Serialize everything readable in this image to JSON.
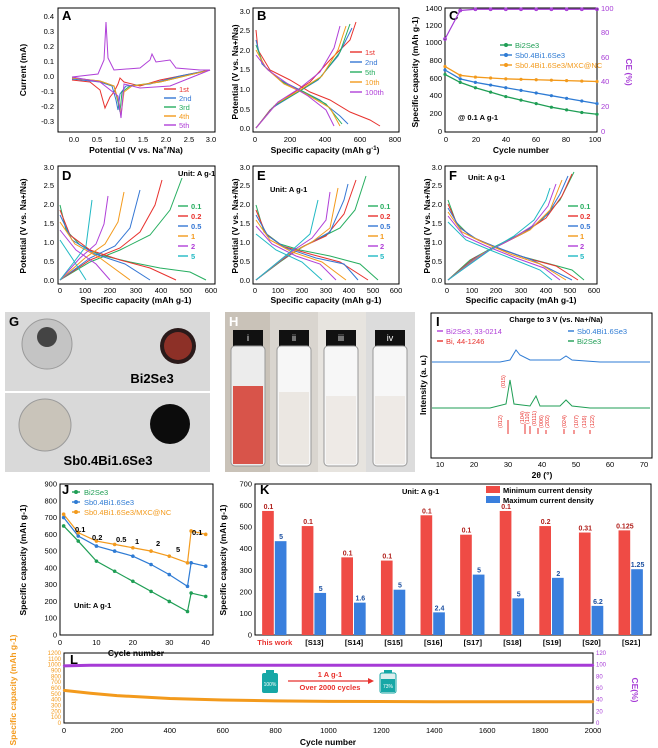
{
  "figure_title": "",
  "panels": {
    "A": {
      "letter": "A",
      "xlabel": "Potential (V vs. Na",
      "xlabel_sup": "+",
      "xlabel_end": "/Na)",
      "ylabel": "Current (mA)",
      "xticks": [
        "0.0",
        "0.5",
        "1.0",
        "1.5",
        "2.0",
        "2.5",
        "3.0"
      ],
      "yticks": [
        "0.4",
        "0.3",
        "0.2",
        "0.1",
        "0.0",
        "-0.1",
        "-0.2",
        "-0.3"
      ],
      "legend": [
        "1st",
        "2nd",
        "3rd",
        "4th",
        "5th"
      ]
    },
    "B": {
      "letter": "B",
      "xlabel": "Specific capacity (mAh g",
      "xlabel_sup": "-1",
      "xlabel_end": ")",
      "ylabel": "Potential (V vs. Na+/Na)",
      "xticks": [
        "0",
        "200",
        "400",
        "600",
        "800"
      ],
      "yticks": [
        "0.0",
        "0.5",
        "1.0",
        "1.5",
        "2.0",
        "2.5",
        "3.0"
      ],
      "legend": [
        "1st",
        "2nd",
        "5th",
        "10th",
        "100th"
      ]
    },
    "C": {
      "letter": "C",
      "xlabel": "Cycle number",
      "ylabel": "Specific capacity (mAh g-1)",
      "y2label": "CE (%)",
      "xticks": [
        "0",
        "20",
        "40",
        "60",
        "80",
        "100"
      ],
      "yticks": [
        "0",
        "200",
        "400",
        "600",
        "800",
        "1000",
        "1200",
        "1400"
      ],
      "y2ticks": [
        "0",
        "20",
        "40",
        "60",
        "80",
        "100"
      ],
      "legend": [
        "Bi2Se3",
        "Sb0.4Bi1.6Se3",
        "Sb0.4Bi1.6Se3/MXC@NC"
      ],
      "annotation": "@ 0.1 A g-1"
    },
    "D": {
      "letter": "D",
      "xlabel": "Specific capacity (mAh g-1)",
      "ylabel": "Potential (V vs. Na+/Na)",
      "xticks": [
        "0",
        "100",
        "200",
        "300",
        "400",
        "500",
        "600"
      ],
      "yticks": [
        "0.0",
        "0.5",
        "1.0",
        "1.5",
        "2.0",
        "2.5",
        "3.0"
      ],
      "unit": "Unit: A g-1",
      "legend": [
        "0.1",
        "0.2",
        "0.5",
        "1",
        "2",
        "5"
      ]
    },
    "E": {
      "letter": "E",
      "xlabel": "Specific capacity (mAh g-1)",
      "ylabel": "Potential (V vs. Na+/Na)",
      "xticks": [
        "0",
        "100",
        "200",
        "300",
        "400",
        "500",
        "600"
      ],
      "yticks": [
        "0.0",
        "0.5",
        "1.0",
        "1.5",
        "2.0",
        "2.5",
        "3.0"
      ],
      "unit": "Unit: A g-1",
      "legend": [
        "0.1",
        "0.2",
        "0.5",
        "1",
        "2",
        "5"
      ]
    },
    "F": {
      "letter": "F",
      "xlabel": "Specific capacity (mAh g-1)",
      "ylabel": "Potential (V vs. Na+/Na)",
      "xticks": [
        "0",
        "100",
        "200",
        "300",
        "400",
        "500",
        "600"
      ],
      "yticks": [
        "0.0",
        "0.5",
        "1.0",
        "1.5",
        "2.0",
        "2.5",
        "3.0"
      ],
      "unit": "Unit: A g-1",
      "legend": [
        "0.1",
        "0.2",
        "0.5",
        "1",
        "2",
        "5"
      ]
    },
    "G": {
      "letter": "G",
      "label1": "Bi2Se3",
      "label2": "Sb0.4Bi1.6Se3"
    },
    "H": {
      "letter": "H",
      "vials": [
        "i",
        "ii",
        "iii",
        "iv"
      ]
    },
    "I": {
      "letter": "I",
      "title": "Charge to 3 V (vs. Na+/Na)",
      "xlabel": "2θ (°)",
      "ylabel": "Intensity (a. u.)",
      "xticks": [
        "10",
        "20",
        "30",
        "40",
        "50",
        "60",
        "70"
      ],
      "legend": [
        "Bi2Se3, 33-0214",
        "Bi, 44-1246",
        "Sb0.4Bi1.6Se3",
        "Bi2Se3"
      ],
      "peaks": [
        "(012)",
        "(015)",
        "(104)",
        "(110)",
        "(0111)",
        "(006)",
        "(202)",
        "(024)",
        "(107)",
        "(116)",
        "(122)"
      ]
    },
    "J": {
      "letter": "J",
      "xlabel": "Cycle number",
      "ylabel": "Specific capacity (mAh g-1)",
      "xticks": [
        "0",
        "10",
        "20",
        "30",
        "40"
      ],
      "yticks": [
        "0",
        "100",
        "200",
        "300",
        "400",
        "500",
        "600",
        "700",
        "800",
        "900"
      ],
      "legend": [
        "Bi2Se3",
        "Sb0.4Bi1.6Se3",
        "Sb0.4Bi1.6Se3/MXC@NC"
      ],
      "rates": [
        "0.1",
        "0.2",
        "0.5",
        "1",
        "2",
        "5",
        "0.1"
      ],
      "unit": "Unit: A g-1"
    },
    "K": {
      "letter": "K",
      "ylabel": "Specific capacity (mAh g-1)",
      "unit": "Unit: A g-1",
      "yticks": [
        "0",
        "100",
        "200",
        "300",
        "400",
        "500",
        "600",
        "700"
      ],
      "legend": [
        "Minimum current density",
        "Maximum current density"
      ]
    },
    "L": {
      "letter": "L",
      "xlabel": "Cycle number",
      "ylabel": "Specific capacity (mAh g-1)",
      "y2label": "CE(%)",
      "xticks": [
        "0",
        "200",
        "400",
        "600",
        "800",
        "1000",
        "1200",
        "1400",
        "1600",
        "1800",
        "2000"
      ],
      "yticks": [
        "0",
        "100",
        "200",
        "300",
        "400",
        "500",
        "600",
        "700",
        "800",
        "900",
        "1000",
        "1100",
        "1200"
      ],
      "y2ticks": [
        "0",
        "20",
        "40",
        "60",
        "80",
        "100",
        "120"
      ],
      "rate": "1 A g-1",
      "cycles_text": "Over 2000 cycles",
      "batt_left": "100%",
      "batt_right": "73%"
    }
  },
  "colors": {
    "c1": "#e8322e",
    "c2": "#3577d4",
    "c3": "#27ae60",
    "c4": "#f39a1c",
    "c5": "#b040d8",
    "bi2se3": "#1f9e55",
    "sbbise": "#2e7bd4",
    "mxc": "#f39a1c",
    "ce": "#a63bd6"
  },
  "chart_data": [
    {
      "panel": "C",
      "type": "line",
      "x": [
        0,
        10,
        20,
        30,
        40,
        50,
        60,
        70,
        80,
        90,
        100
      ],
      "series": [
        {
          "name": "Bi2Se3",
          "values": [
            650,
            560,
            500,
            450,
            400,
            360,
            320,
            280,
            250,
            220,
            200
          ]
        },
        {
          "name": "Sb0.4Bi1.6Se3",
          "values": [
            700,
            600,
            560,
            530,
            500,
            470,
            440,
            410,
            380,
            350,
            320
          ]
        },
        {
          "name": "Sb0.4Bi1.6Se3/MXC@NC",
          "values": [
            740,
            640,
            620,
            610,
            600,
            595,
            590,
            585,
            580,
            575,
            570
          ]
        }
      ],
      "ce": [
        75,
        98,
        99,
        99,
        99,
        99,
        99,
        99,
        99,
        99,
        99
      ],
      "xlim": [
        0,
        100
      ],
      "ylim": [
        0,
        1400
      ],
      "y2lim": [
        0,
        100
      ]
    },
    {
      "panel": "J",
      "type": "line",
      "x": [
        1,
        5,
        10,
        15,
        20,
        25,
        30,
        35,
        36,
        40
      ],
      "series": [
        {
          "name": "Bi2Se3",
          "values": [
            650,
            560,
            440,
            380,
            320,
            260,
            200,
            140,
            250,
            230
          ]
        },
        {
          "name": "Sb0.4Bi1.6Se3",
          "values": [
            700,
            590,
            530,
            500,
            470,
            420,
            360,
            290,
            430,
            410
          ]
        },
        {
          "name": "Sb0.4Bi1.6Se3/MXC@NC",
          "values": [
            720,
            610,
            560,
            540,
            520,
            500,
            470,
            430,
            620,
            600
          ]
        }
      ],
      "xlim": [
        0,
        42
      ],
      "ylim": [
        0,
        900
      ]
    },
    {
      "panel": "K",
      "type": "bar",
      "categories": [
        "This work",
        "[S13]",
        "[S14]",
        "[S15]",
        "[S16]",
        "[S17]",
        "[S18]",
        "[S19]",
        "[S20]",
        "[S21]"
      ],
      "series": [
        {
          "name": "Minimum current density",
          "values": [
            575,
            505,
            360,
            345,
            555,
            465,
            575,
            505,
            475,
            485
          ],
          "labels": [
            "0.1",
            "0.1",
            "0.1",
            "0.1",
            "0.1",
            "0.1",
            "0.1",
            "0.2",
            "0.31",
            "0.125"
          ]
        },
        {
          "name": "Maximum current density",
          "values": [
            435,
            195,
            150,
            210,
            105,
            280,
            170,
            265,
            135,
            305
          ],
          "labels": [
            "5",
            "5",
            "1.6",
            "5",
            "2.4",
            "5",
            "5",
            "2",
            "6.2",
            "1.25"
          ]
        }
      ],
      "ylim": [
        0,
        700
      ]
    },
    {
      "panel": "L",
      "type": "line",
      "x": [
        0,
        100,
        200,
        400,
        600,
        800,
        1000,
        1200,
        1400,
        1600,
        1800,
        2000
      ],
      "series": [
        {
          "name": "Specific capacity",
          "values": [
            560,
            510,
            470,
            420,
            395,
            380,
            370,
            368,
            365,
            364,
            364,
            365
          ]
        }
      ],
      "ce": [
        98,
        99,
        99,
        99,
        99,
        99,
        99,
        99,
        99,
        99,
        99,
        99
      ],
      "xlim": [
        0,
        2000
      ],
      "ylim": [
        0,
        1200
      ],
      "y2lim": [
        0,
        120
      ]
    }
  ]
}
